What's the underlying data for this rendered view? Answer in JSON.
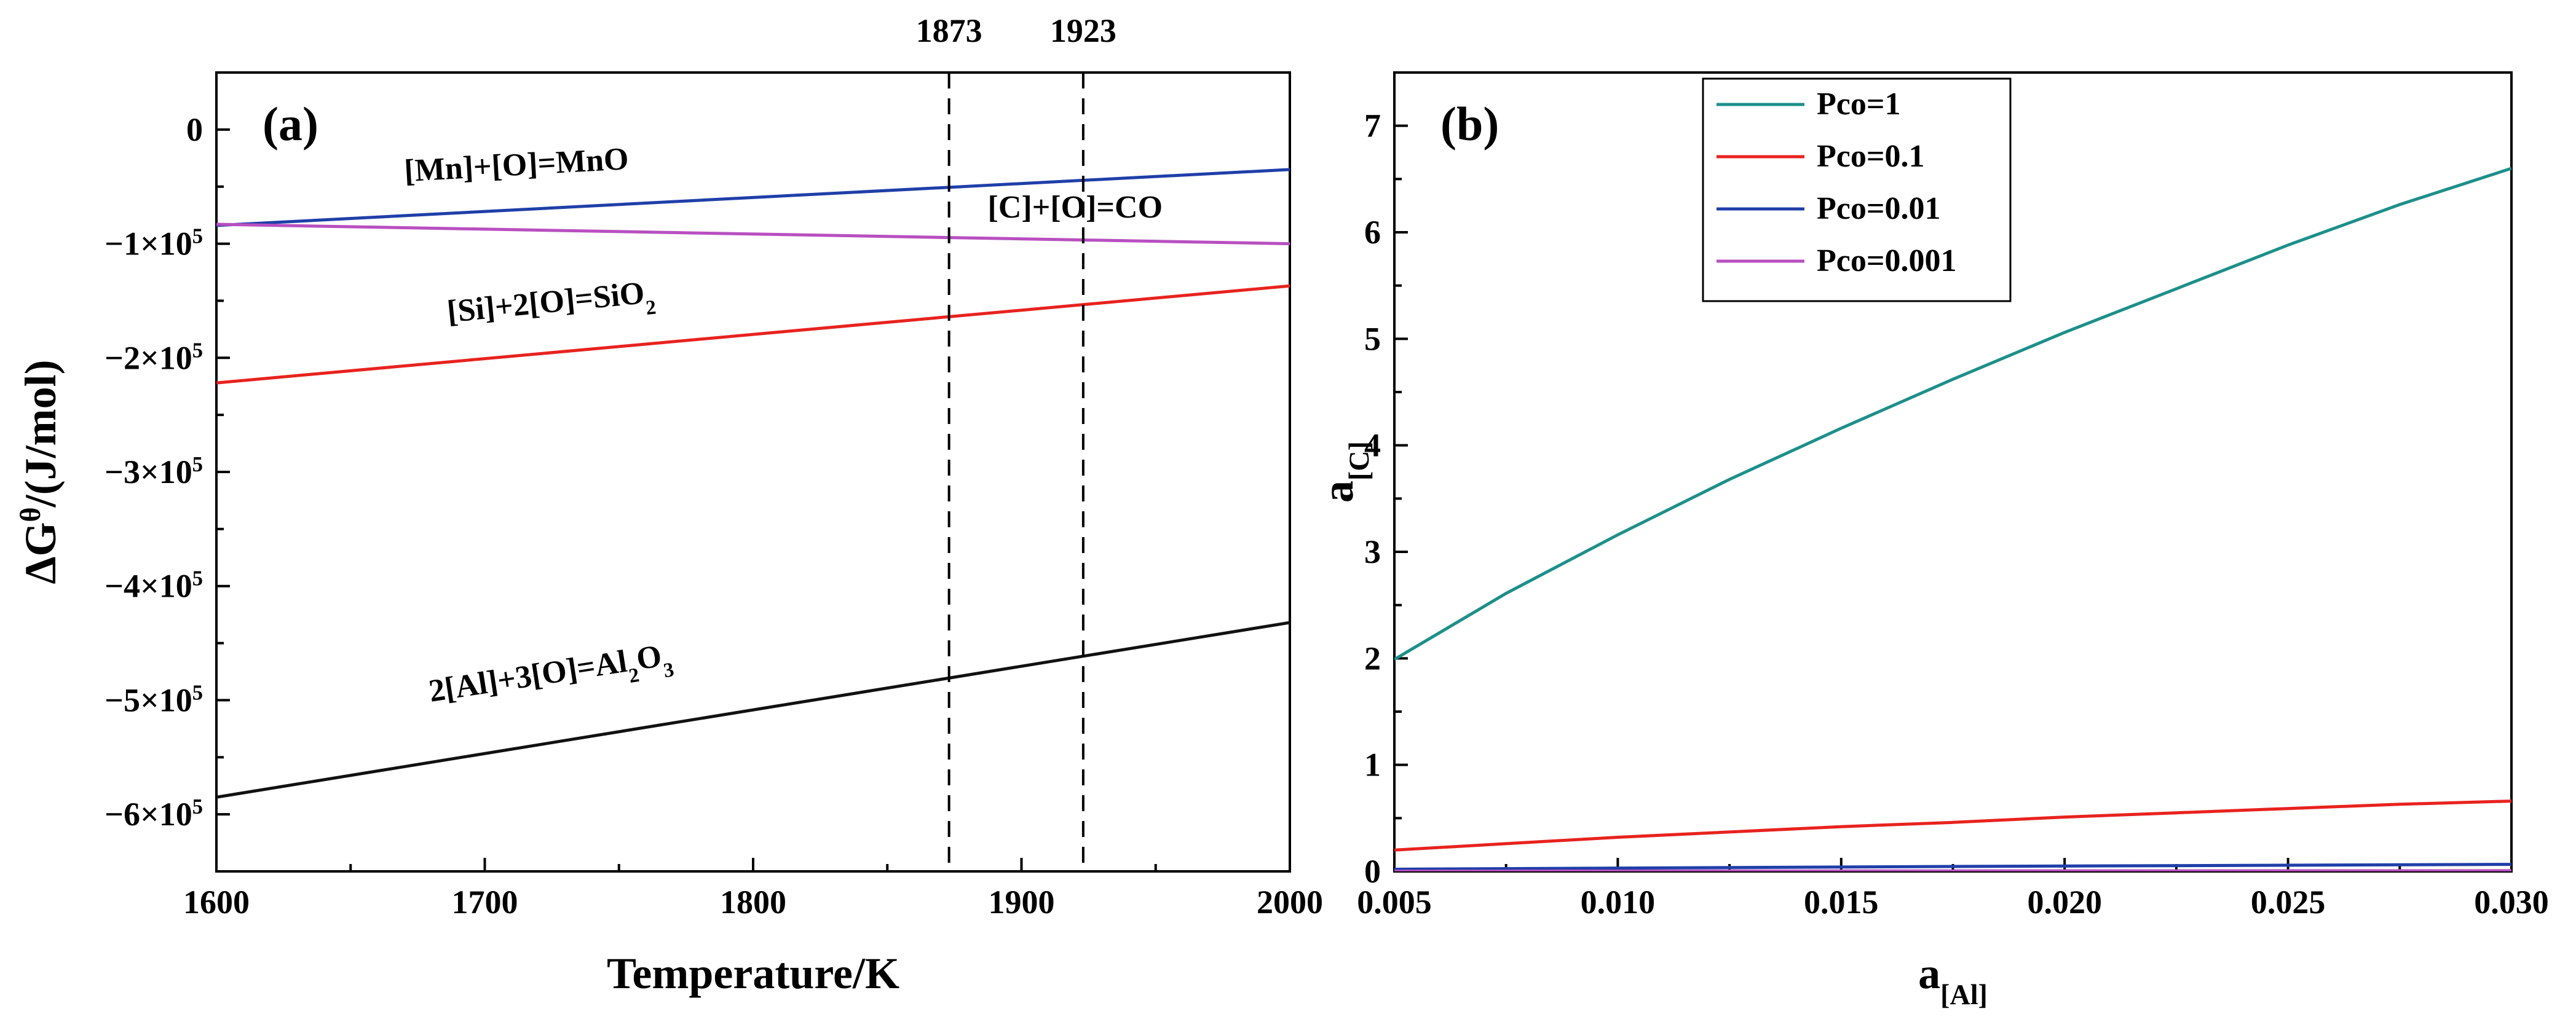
{
  "chart_data": [
    {
      "type": "line",
      "panel_label": "(a)",
      "xlabel": "Temperature/K",
      "ylabel": {
        "base": "ΔG",
        "sup": "θ",
        "rest": "/(J/mol)"
      },
      "xlim": [
        1600,
        2000
      ],
      "ylim": [
        -650000,
        50000
      ],
      "x_ticks": [
        1600,
        1700,
        1800,
        1900,
        2000
      ],
      "x_tick_labels": [
        "1600",
        "1700",
        "1800",
        "1900",
        "2000"
      ],
      "x_minor_ticks": [
        1650,
        1750,
        1850,
        1950
      ],
      "y_ticks": [
        0,
        -100000,
        -200000,
        -300000,
        -400000,
        -500000,
        -600000
      ],
      "y_tick_labels": [
        {
          "main": "0",
          "sup": ""
        },
        {
          "main": "−1×10",
          "sup": "5"
        },
        {
          "main": "−2×10",
          "sup": "5"
        },
        {
          "main": "−3×10",
          "sup": "5"
        },
        {
          "main": "−4×10",
          "sup": "5"
        },
        {
          "main": "−5×10",
          "sup": "5"
        },
        {
          "main": "−6×10",
          "sup": "5"
        }
      ],
      "y_minor_ticks": [
        -50000,
        -150000,
        -250000,
        -350000,
        -450000,
        -550000
      ],
      "series": [
        {
          "name": "[Mn]+[O]=MnO",
          "color": "#1f3fa8",
          "x": [
            1600,
            2000
          ],
          "y": [
            -84000,
            -35000
          ]
        },
        {
          "name": "[C]+[O]=CO",
          "color": "#b84fc0",
          "x": [
            1600,
            2000
          ],
          "y": [
            -83000,
            -100000
          ]
        },
        {
          "name": "[Si]+2[O]=SiO2",
          "color": "#e8221e",
          "x": [
            1600,
            2000
          ],
          "y": [
            -222000,
            -137000
          ]
        },
        {
          "name": "2[Al]+3[O]=Al2O3",
          "color": "#111111",
          "x": [
            1600,
            2000
          ],
          "y": [
            -585000,
            -432000
          ]
        }
      ],
      "vlines": [
        {
          "x": 1873,
          "label": "1873"
        },
        {
          "x": 1923,
          "label": "1923"
        }
      ],
      "annotations": [
        {
          "parts": [
            {
              "t": "[Mn]+[O]=MnO",
              "s": "n"
            }
          ],
          "x": 1712,
          "y": -40000,
          "angle": -3.2
        },
        {
          "parts": [
            {
              "t": "[C]+[O]=CO",
              "s": "n"
            }
          ],
          "x": 1920,
          "y": -77000,
          "angle": 0
        },
        {
          "parts": [
            {
              "t": "[Si]+2[O]=SiO",
              "s": "n"
            },
            {
              "t": "2",
              "s": "sub"
            }
          ],
          "x": 1725,
          "y": -160000,
          "angle": -5.6
        },
        {
          "parts": [
            {
              "t": "2[Al]+3[O]=Al",
              "s": "n"
            },
            {
              "t": "2",
              "s": "sub"
            },
            {
              "t": "O",
              "s": "n"
            },
            {
              "t": "3",
              "s": "sub"
            }
          ],
          "x": 1725,
          "y": -485000,
          "angle": -8.8
        }
      ]
    },
    {
      "type": "line",
      "panel_label": "(b)",
      "xlabel": {
        "base": "a",
        "sub": "[Al]"
      },
      "ylabel": {
        "base": "a",
        "sub": "[C]"
      },
      "xlim": [
        0.005,
        0.03
      ],
      "ylim": [
        0,
        7.5
      ],
      "x_ticks": [
        0.005,
        0.01,
        0.015,
        0.02,
        0.025,
        0.03
      ],
      "x_tick_labels": [
        "0.005",
        "0.010",
        "0.015",
        "0.020",
        "0.025",
        "0.030"
      ],
      "x_minor_ticks": [
        0.0075,
        0.0125,
        0.0175,
        0.0225,
        0.0275
      ],
      "y_ticks": [
        0,
        1,
        2,
        3,
        4,
        5,
        6,
        7
      ],
      "y_tick_labels": [
        "0",
        "1",
        "2",
        "3",
        "4",
        "5",
        "6",
        "7"
      ],
      "y_minor_ticks": [
        0.5,
        1.5,
        2.5,
        3.5,
        4.5,
        5.5,
        6.5
      ],
      "series": [
        {
          "name": "Pco=1",
          "color": "#1d8f8a",
          "x": [
            0.005,
            0.0075,
            0.01,
            0.0125,
            0.015,
            0.0175,
            0.02,
            0.0225,
            0.025,
            0.0275,
            0.03
          ],
          "y": [
            1.99,
            2.61,
            3.16,
            3.68,
            4.16,
            4.62,
            5.06,
            5.47,
            5.88,
            6.26,
            6.6
          ]
        },
        {
          "name": "Pco=0.1",
          "color": "#e8221e",
          "x": [
            0.005,
            0.0075,
            0.01,
            0.0125,
            0.015,
            0.0175,
            0.02,
            0.0225,
            0.025,
            0.0275,
            0.03
          ],
          "y": [
            0.2,
            0.26,
            0.32,
            0.37,
            0.42,
            0.46,
            0.51,
            0.55,
            0.59,
            0.63,
            0.66
          ]
        },
        {
          "name": "Pco=0.01",
          "color": "#1f3fa8",
          "x": [
            0.005,
            0.0175,
            0.03
          ],
          "y": [
            0.02,
            0.046,
            0.066
          ]
        },
        {
          "name": "Pco=0.001",
          "color": "#b84fc0",
          "x": [
            0.005,
            0.0175,
            0.03
          ],
          "y": [
            0.002,
            0.0046,
            0.0066
          ]
        }
      ],
      "legend": {
        "position": "top-left"
      }
    }
  ]
}
